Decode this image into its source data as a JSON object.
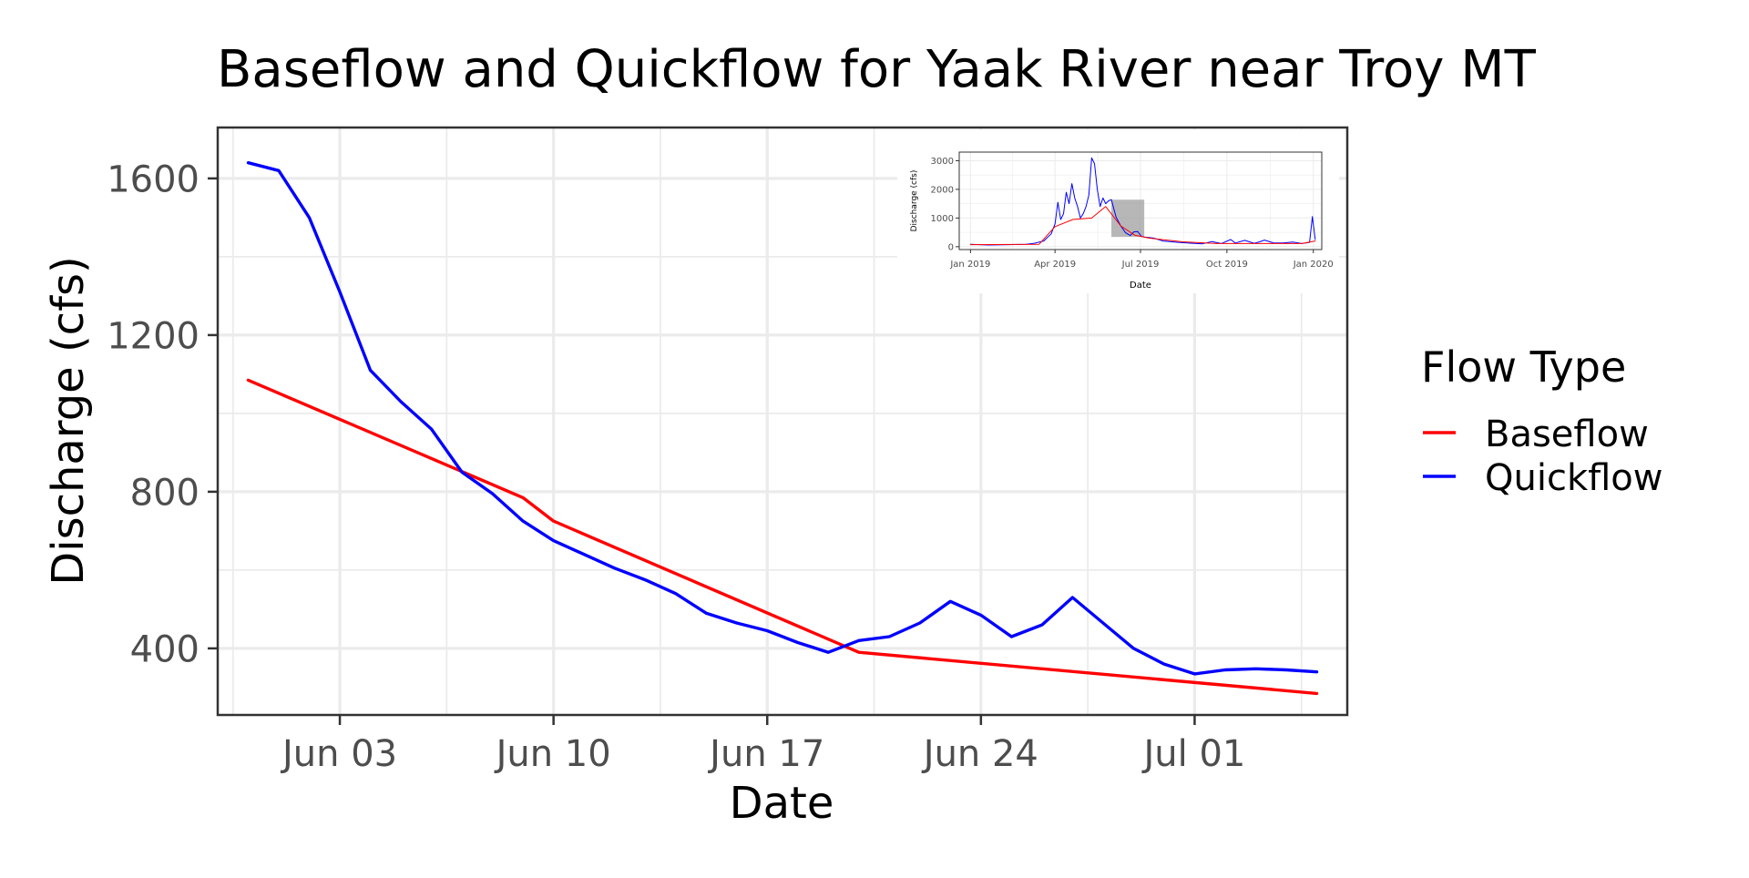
{
  "chart_data": [
    {
      "type": "line",
      "title": "Baseflow and Quickflow for Yaak River near Troy MT",
      "xlabel": "Date",
      "ylabel": "Discharge (cfs)",
      "x_type": "date",
      "xlim": [
        "2019-05-30",
        "2019-07-06"
      ],
      "ylim": [
        230,
        1730
      ],
      "x_ticks": [
        {
          "date": "2019-06-03",
          "label": "Jun 03"
        },
        {
          "date": "2019-06-10",
          "label": "Jun 10"
        },
        {
          "date": "2019-06-17",
          "label": "Jun 17"
        },
        {
          "date": "2019-06-24",
          "label": "Jun 24"
        },
        {
          "date": "2019-07-01",
          "label": "Jul 01"
        }
      ],
      "y_ticks": [
        {
          "value": 400,
          "label": "400"
        },
        {
          "value": 800,
          "label": "800"
        },
        {
          "value": 1200,
          "label": "1200"
        },
        {
          "value": 1600,
          "label": "1600"
        }
      ],
      "grid": true,
      "legend": {
        "title": "Flow Type",
        "placement": "right",
        "entries": [
          "Baseflow",
          "Quickflow"
        ]
      },
      "series": [
        {
          "name": "Baseflow",
          "color": "#ff0000",
          "x": [
            "2019-05-31",
            "2019-06-09",
            "2019-06-10",
            "2019-06-20",
            "2019-07-05"
          ],
          "values": [
            1085,
            785,
            725,
            390,
            285
          ]
        },
        {
          "name": "Quickflow",
          "color": "#0000ff",
          "x": [
            "2019-05-31",
            "2019-06-01",
            "2019-06-02",
            "2019-06-03",
            "2019-06-04",
            "2019-06-05",
            "2019-06-06",
            "2019-06-07",
            "2019-06-08",
            "2019-06-09",
            "2019-06-10",
            "2019-06-11",
            "2019-06-12",
            "2019-06-13",
            "2019-06-14",
            "2019-06-15",
            "2019-06-16",
            "2019-06-17",
            "2019-06-18",
            "2019-06-19",
            "2019-06-20",
            "2019-06-21",
            "2019-06-22",
            "2019-06-23",
            "2019-06-24",
            "2019-06-25",
            "2019-06-26",
            "2019-06-27",
            "2019-06-28",
            "2019-06-29",
            "2019-06-30",
            "2019-07-01",
            "2019-07-02",
            "2019-07-03",
            "2019-07-04",
            "2019-07-05"
          ],
          "values": [
            1640,
            1620,
            1500,
            1310,
            1110,
            1030,
            960,
            850,
            795,
            725,
            675,
            640,
            605,
            575,
            540,
            490,
            465,
            445,
            415,
            390,
            420,
            430,
            465,
            520,
            485,
            430,
            460,
            530,
            465,
            400,
            360,
            335,
            345,
            348,
            345,
            340
          ]
        }
      ]
    },
    {
      "type": "line",
      "title": "",
      "xlabel": "Date",
      "ylabel": "Discharge (cfs)",
      "x_type": "date",
      "xlim": [
        "2018-12-20",
        "2020-01-10"
      ],
      "ylim": [
        -100,
        3300
      ],
      "x_ticks": [
        {
          "date": "2019-01-01",
          "label": "Jan 2019"
        },
        {
          "date": "2019-04-01",
          "label": "Apr 2019"
        },
        {
          "date": "2019-07-01",
          "label": "Jul 2019"
        },
        {
          "date": "2019-10-01",
          "label": "Oct 2019"
        },
        {
          "date": "2020-01-01",
          "label": "Jan 2020"
        }
      ],
      "y_ticks": [
        {
          "value": 0,
          "label": "0"
        },
        {
          "value": 1000,
          "label": "1000"
        },
        {
          "value": 2000,
          "label": "2000"
        },
        {
          "value": 3000,
          "label": "3000"
        }
      ],
      "grid": true,
      "highlight": {
        "x": [
          "2019-05-31",
          "2019-07-05"
        ],
        "y": [
          340,
          1640
        ],
        "color": "#999999"
      },
      "series": [
        {
          "color": "#0000ff",
          "x": [
            "2019-01-01",
            "2019-01-20",
            "2019-02-10",
            "2019-03-01",
            "2019-03-10",
            "2019-03-20",
            "2019-03-28",
            "2019-04-01",
            "2019-04-04",
            "2019-04-07",
            "2019-04-10",
            "2019-04-13",
            "2019-04-16",
            "2019-04-19",
            "2019-04-22",
            "2019-04-25",
            "2019-04-28",
            "2019-05-01",
            "2019-05-04",
            "2019-05-07",
            "2019-05-10",
            "2019-05-13",
            "2019-05-16",
            "2019-05-19",
            "2019-05-22",
            "2019-05-25",
            "2019-05-28",
            "2019-05-31",
            "2019-06-05",
            "2019-06-10",
            "2019-06-15",
            "2019-06-20",
            "2019-06-24",
            "2019-06-28",
            "2019-07-02",
            "2019-07-05",
            "2019-07-15",
            "2019-07-25",
            "2019-08-10",
            "2019-08-25",
            "2019-09-05",
            "2019-09-15",
            "2019-09-25",
            "2019-10-05",
            "2019-10-10",
            "2019-10-20",
            "2019-10-30",
            "2019-11-05",
            "2019-11-10",
            "2019-11-20",
            "2019-11-30",
            "2019-12-10",
            "2019-12-20",
            "2019-12-28",
            "2019-12-31",
            "2020-01-03"
          ],
          "values": [
            80,
            60,
            70,
            80,
            120,
            200,
            450,
            800,
            1550,
            950,
            1150,
            1900,
            1500,
            2200,
            1700,
            1400,
            1000,
            1150,
            1400,
            1800,
            3100,
            2900,
            2000,
            1400,
            1700,
            1500,
            1600,
            1640,
            1030,
            725,
            490,
            390,
            520,
            530,
            360,
            340,
            300,
            200,
            150,
            120,
            100,
            180,
            110,
            250,
            130,
            220,
            120,
            170,
            230,
            130,
            130,
            160,
            110,
            150,
            1050,
            250
          ]
        },
        {
          "color": "#ff0000",
          "x": [
            "2019-01-01",
            "2019-03-15",
            "2019-04-01",
            "2019-04-20",
            "2019-05-10",
            "2019-05-25",
            "2019-06-10",
            "2019-06-25",
            "2019-07-10",
            "2019-08-15",
            "2019-09-20",
            "2019-10-30",
            "2019-12-20",
            "2020-01-03"
          ],
          "values": [
            70,
            80,
            700,
            950,
            1000,
            1400,
            725,
            400,
            300,
            170,
            110,
            110,
            110,
            200
          ]
        }
      ]
    }
  ]
}
